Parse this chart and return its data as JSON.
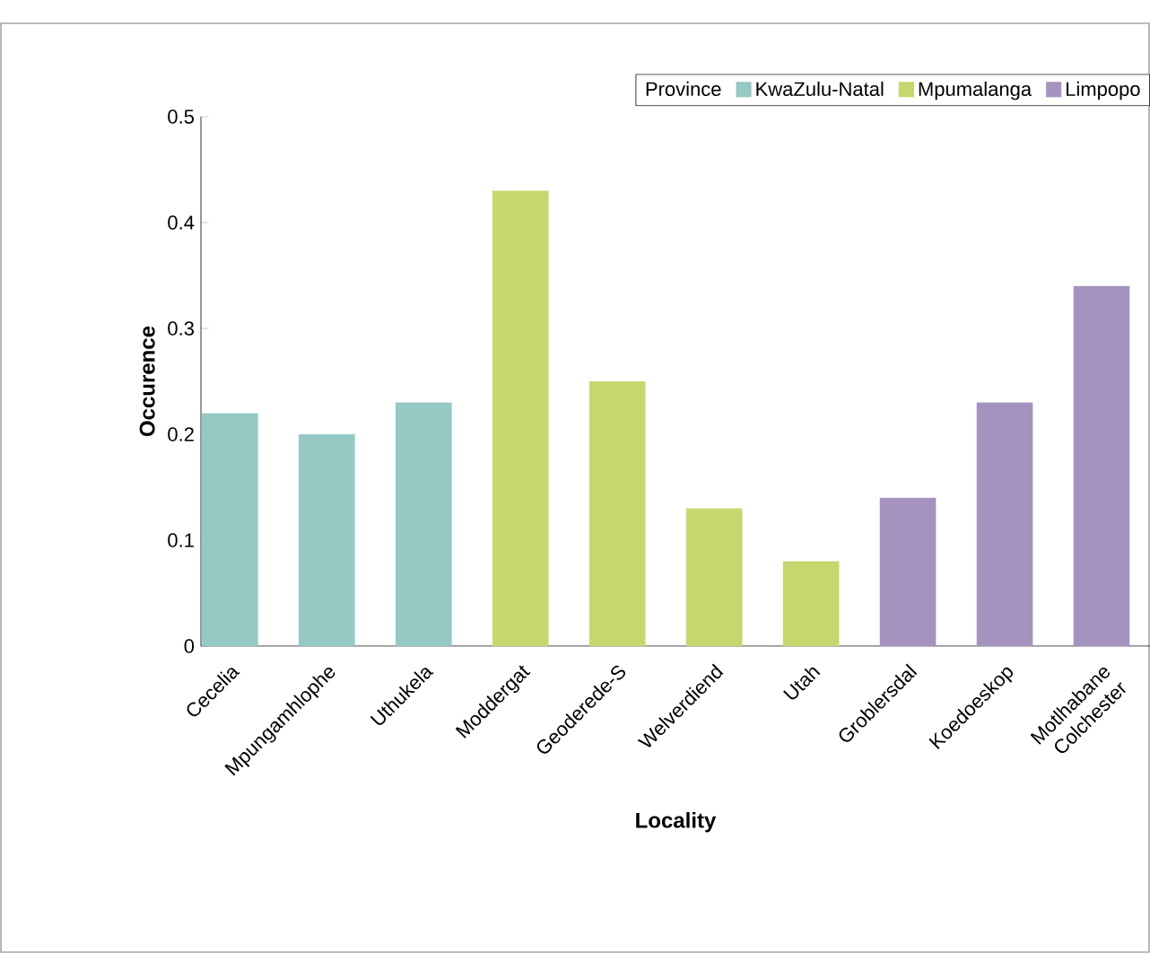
{
  "chart_data": {
    "type": "bar",
    "xlabel": "Locality",
    "ylabel": "Occurence",
    "legend_title": "Province",
    "categories": [
      "Cecelia",
      "Mpungamhlophe",
      "Uthukela",
      "Moddergat",
      "Geoderede-S",
      "Welverdiend",
      "Utah",
      "Groblersdal",
      "Koedoeskop",
      "Motlhabane Colchester"
    ],
    "series": [
      {
        "name": "KwaZulu-Natal",
        "color": "#94c9c4",
        "values": [
          0.22,
          0.2,
          0.23,
          null,
          null,
          null,
          null,
          null,
          null,
          null
        ]
      },
      {
        "name": "Mpumalanga",
        "color": "#c5d86d",
        "values": [
          null,
          null,
          null,
          0.43,
          0.25,
          0.13,
          0.08,
          null,
          null,
          null
        ]
      },
      {
        "name": "Limpopo",
        "color": "#a493bf",
        "values": [
          null,
          null,
          null,
          null,
          null,
          null,
          null,
          0.14,
          0.23,
          0.34
        ]
      }
    ],
    "ylim": [
      0,
      0.5
    ],
    "yticks": [
      0,
      0.1,
      0.2,
      0.3,
      0.4,
      0.5
    ],
    "grid": false,
    "legend": "top right"
  }
}
